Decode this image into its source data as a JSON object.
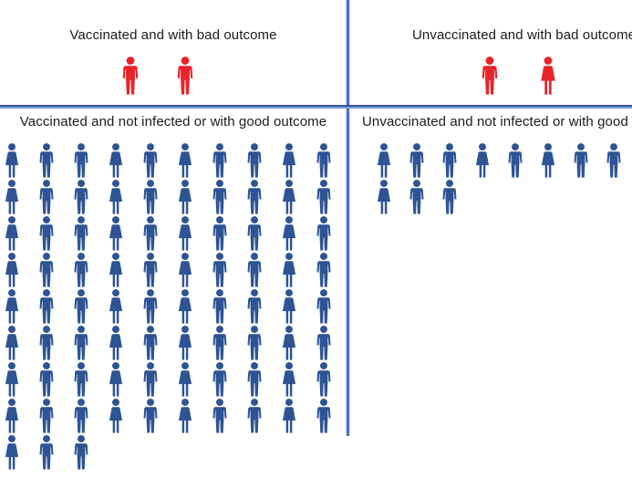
{
  "colors": {
    "bad_outcome_red": "#e8242b",
    "good_outcome_blue": "#2e5494",
    "divider_blue": "#4a72bd",
    "divider_blue_light": "#ccd9ef",
    "header_text": "#1b1b1b"
  },
  "quadrants": {
    "top_left": {
      "label": "Vaccinated and with bad outcome",
      "icon_color": "#e8242b",
      "count": 2,
      "rows": [
        "MM"
      ]
    },
    "top_right": {
      "label": "Unvaccinated and with bad outcome",
      "icon_color": "#e8242b",
      "count": 2,
      "rows": [
        "MF"
      ]
    },
    "bottom_left": {
      "label": "Vaccinated and not infected or with good outcome",
      "icon_color": "#2e5494",
      "count": 83,
      "rows": [
        "FMMFMFMMFM",
        "FMMFMFMMFM",
        "FMMFMFMMFM",
        "FMMFMFMMFM",
        "FMMFMFMMFM",
        "FMMFMFMMFM",
        "FMMFMFMMFM",
        "FMMFMFMMFM",
        "FMM"
      ]
    },
    "bottom_right": {
      "label": "Unvaccinated and not infected or with good outcome",
      "icon_color": "#2e5494",
      "count": 11,
      "rows": [
        "FMMFMFMM",
        "FMM"
      ]
    }
  },
  "chart_data": {
    "type": "pictogram",
    "title": "",
    "categories": [
      "Vaccinated and with bad outcome",
      "Unvaccinated and with bad outcome",
      "Vaccinated and not infected or with good outcome",
      "Unvaccinated and not infected or with good outcome"
    ],
    "values": [
      2,
      2,
      83,
      11
    ],
    "series": [
      {
        "name": "Vaccinated and with bad outcome",
        "icon": "person",
        "color": "#e8242b",
        "value": 2
      },
      {
        "name": "Unvaccinated and with bad outcome",
        "icon": "person",
        "color": "#e8242b",
        "value": 2
      },
      {
        "name": "Vaccinated and not infected or with good outcome",
        "icon": "person",
        "color": "#2e5494",
        "value": 83
      },
      {
        "name": "Unvaccinated and not infected or with good outcome",
        "icon": "person",
        "color": "#2e5494",
        "value": 11
      }
    ],
    "layout": "2x2 quadrant grid separated by blue divider lines; right column clipped by image edge",
    "legend_position": "none",
    "grid": false
  }
}
